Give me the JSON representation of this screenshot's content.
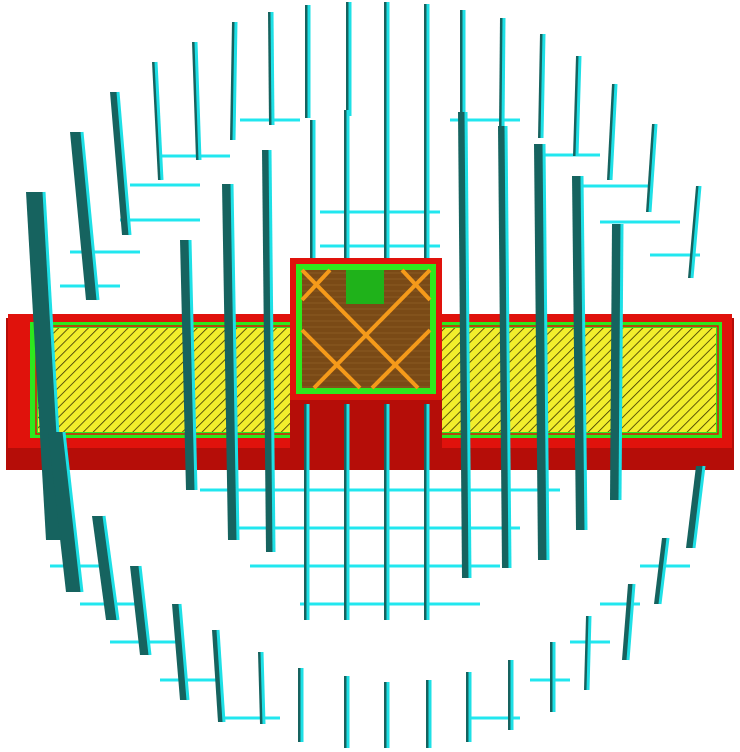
{
  "colors": {
    "background": "#ffffff",
    "support_face": "#16635f",
    "support_edge": "#1ee0e6",
    "support_line": "#21e7ef",
    "wall_outer": "#e0120c",
    "wall_outer_dark": "#b50d08",
    "wall_inner": "#2ee81d",
    "infill_top": "#f2ee2c",
    "infill_hatch": "#3a3400",
    "infill_sparse": "#7a4a16",
    "infill_sparse_line": "#f59a1a"
  },
  "scene": {
    "view": "layer-view-preview",
    "objects": [
      "bar",
      "box"
    ],
    "support": "tree-support-lines"
  }
}
